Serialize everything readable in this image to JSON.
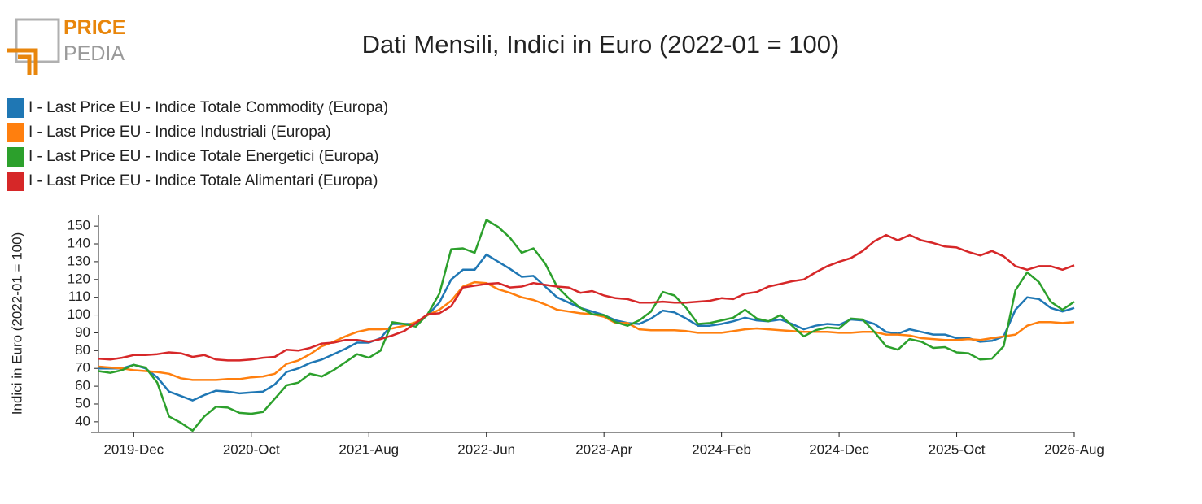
{
  "logo": {
    "top": "PRICE",
    "bottom": "PEDIA"
  },
  "chart_data": {
    "type": "line",
    "title": "Dati Mensili, Indici in Euro (2022-01 = 100)",
    "y_label": "Indici in Euro (2022-01 = 100)",
    "x": [
      "2019-Sep",
      "2019-Oct",
      "2019-Nov",
      "2019-Dec",
      "2020-Jan",
      "2020-Feb",
      "2020-Mar",
      "2020-Apr",
      "2020-May",
      "2020-Jun",
      "2020-Jul",
      "2020-Aug",
      "2020-Sep",
      "2020-Oct",
      "2020-Nov",
      "2020-Dec",
      "2021-Jan",
      "2021-Feb",
      "2021-Mar",
      "2021-Apr",
      "2021-May",
      "2021-Jun",
      "2021-Jul",
      "2021-Aug",
      "2021-Sep",
      "2021-Oct",
      "2021-Nov",
      "2021-Dec",
      "2022-Jan",
      "2022-Feb",
      "2022-Mar",
      "2022-Apr",
      "2022-May",
      "2022-Jun",
      "2022-Jul",
      "2022-Aug",
      "2022-Sep",
      "2022-Oct",
      "2022-Nov",
      "2022-Dec",
      "2023-Jan",
      "2023-Feb",
      "2023-Mar",
      "2023-Apr",
      "2023-May",
      "2023-Jun",
      "2023-Jul",
      "2023-Aug",
      "2023-Sep",
      "2023-Oct",
      "2023-Nov",
      "2023-Dec",
      "2024-Jan",
      "2024-Feb",
      "2024-Mar",
      "2024-Apr",
      "2024-May",
      "2024-Jun",
      "2024-Jul",
      "2024-Aug",
      "2024-Sep",
      "2024-Oct",
      "2024-Nov",
      "2024-Dec",
      "2025-Jan",
      "2025-Feb",
      "2025-Mar",
      "2025-Apr",
      "2025-May",
      "2025-Jun",
      "2025-Jul",
      "2025-Aug",
      "2025-Sep",
      "2025-Oct",
      "2025-Nov",
      "2025-Dec",
      "2026-Jan",
      "2026-Feb",
      "2026-Mar",
      "2026-Apr",
      "2026-May",
      "2026-Jun",
      "2026-Jul",
      "2026-Aug"
    ],
    "xticks": [
      "2019-Dec",
      "2020-Oct",
      "2021-Aug",
      "2022-Jun",
      "2023-Apr",
      "2024-Feb",
      "2024-Dec",
      "2025-Oct",
      "2026-Aug"
    ],
    "ylim": [
      34,
      156
    ],
    "yticks": [
      40,
      50,
      60,
      70,
      80,
      90,
      100,
      110,
      120,
      130,
      140,
      150
    ],
    "series": [
      {
        "name": "I - Last Price EU - Indice Totale Commodity (Europa)",
        "color": "#1f77b4",
        "values": [
          70,
          70,
          70,
          72,
          70,
          65,
          57,
          54.5,
          52,
          55,
          57.5,
          57,
          56,
          56.5,
          57,
          61,
          68,
          70,
          73,
          75,
          78,
          81,
          84.5,
          84.5,
          87,
          95,
          95,
          95,
          100,
          107,
          120,
          125.5,
          125.5,
          134,
          130,
          126,
          121.5,
          122,
          116,
          110,
          107,
          104,
          102,
          100,
          97,
          95.5,
          95,
          98,
          102.5,
          101.5,
          98,
          94,
          94,
          95,
          96.5,
          98.5,
          97,
          96.5,
          97.5,
          95,
          92,
          94,
          95,
          94.5,
          97.5,
          97,
          95,
          90.5,
          89.5,
          92,
          90.5,
          89,
          89,
          87,
          87,
          85,
          85.5,
          88,
          103,
          110,
          109,
          104,
          102,
          104
        ]
      },
      {
        "name": "I - Last Price EU - Indice Industriali (Europa)",
        "color": "#ff7f0e",
        "values": [
          71,
          70.5,
          70,
          69,
          68.5,
          68,
          67,
          64.5,
          63.5,
          63.5,
          63.5,
          64,
          64,
          65,
          65.5,
          67,
          72.5,
          74.5,
          78,
          82.5,
          85,
          88,
          90.5,
          92,
          92,
          92.5,
          94,
          96,
          100,
          103,
          108,
          116,
          118.5,
          118,
          114.5,
          112.5,
          110,
          108.5,
          106,
          103,
          102,
          101,
          100.5,
          99,
          95.5,
          95.5,
          92,
          91.5,
          91.5,
          91.5,
          91,
          90,
          90,
          90,
          91,
          92,
          92.5,
          92,
          91.5,
          91,
          90.5,
          90.5,
          90.5,
          90,
          90,
          90.5,
          90.5,
          89,
          89,
          88.5,
          87,
          86.5,
          86,
          86,
          86.5,
          86,
          87,
          88,
          89,
          94,
          96,
          96,
          95.5,
          96
        ]
      },
      {
        "name": "I - Last Price EU - Indice Totale Energetici (Europa)",
        "color": "#2ca02c",
        "values": [
          68.5,
          67.5,
          69,
          72,
          70.5,
          62,
          43,
          39.5,
          35,
          43,
          48.5,
          48,
          45,
          44.5,
          45.5,
          53,
          60.5,
          62,
          67,
          65.5,
          69,
          73.5,
          78,
          76,
          80,
          96,
          95,
          93.5,
          100.5,
          112,
          137,
          137.5,
          135,
          153.5,
          149.5,
          143.5,
          135,
          137.5,
          129,
          116,
          109.5,
          104,
          100.5,
          100,
          96,
          94,
          97,
          102,
          113,
          111,
          104,
          95,
          95.5,
          97,
          98.5,
          103,
          98,
          96.5,
          100,
          94,
          88,
          91.5,
          93,
          92.5,
          98,
          97.5,
          90.5,
          82.5,
          80.5,
          86.5,
          85,
          81.5,
          82,
          79,
          78.5,
          75,
          75.5,
          82.5,
          114,
          124,
          118.5,
          107.5,
          103,
          107.5
        ]
      },
      {
        "name": "I - Last Price EU - Indice Totale Alimentari (Europa)",
        "color": "#d62728",
        "values": [
          75.5,
          75,
          76,
          77.5,
          77.5,
          78,
          79,
          78.5,
          76.5,
          77.5,
          75,
          74.5,
          74.5,
          75,
          76,
          76.5,
          80.5,
          80,
          81.5,
          84,
          84.5,
          86,
          86,
          85,
          86.5,
          88.5,
          91,
          95.5,
          100.5,
          101,
          105,
          115.5,
          116.5,
          117.5,
          118,
          115.5,
          116,
          118,
          117,
          116,
          115.5,
          112.5,
          113.5,
          111,
          109.5,
          109,
          107,
          107,
          107.5,
          107,
          107,
          107.5,
          108,
          109.5,
          109,
          112,
          113,
          116,
          117.5,
          119,
          120,
          124,
          127.5,
          130,
          132,
          136,
          141.5,
          145,
          142,
          145,
          142,
          140.5,
          138.5,
          138,
          135.5,
          133.5,
          136,
          133,
          127.5,
          125.5,
          127.5,
          127.5,
          125.5,
          128
        ]
      }
    ]
  }
}
